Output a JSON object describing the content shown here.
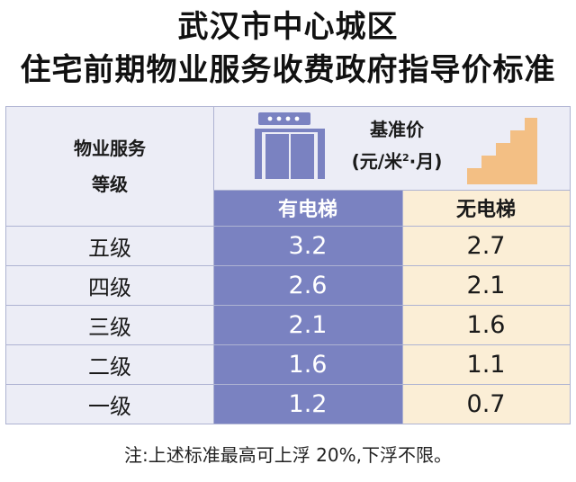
{
  "title_line1": "武汉市中心城区",
  "title_line2": "住宅前期物业服务收费政府指导价标准",
  "header": {
    "level_line1": "物业服务",
    "level_line2": "等级",
    "price_line1": "基准价",
    "price_unit_a": "(元/米",
    "price_unit_sup": "2",
    "price_unit_b": "·月)",
    "with_lift": "有电梯",
    "without_lift": "无电梯"
  },
  "rows": [
    {
      "level": "五级",
      "with_lift": "3.2",
      "without_lift": "2.7"
    },
    {
      "level": "四级",
      "with_lift": "2.6",
      "without_lift": "2.1"
    },
    {
      "level": "三级",
      "with_lift": "2.1",
      "without_lift": "1.6"
    },
    {
      "level": "二级",
      "with_lift": "1.6",
      "without_lift": "1.1"
    },
    {
      "level": "一级",
      "with_lift": "1.2",
      "without_lift": "0.7"
    }
  ],
  "note": "注:上述标准最高可上浮 20%,下浮不限。",
  "icons": {
    "left": "elevator-icon",
    "right": "stairs-icon"
  },
  "colors": {
    "lift": "#7a82c1",
    "no_lift": "#fbeed6",
    "table_bg": "#ecedf6",
    "stairs": "#f3bf84"
  }
}
